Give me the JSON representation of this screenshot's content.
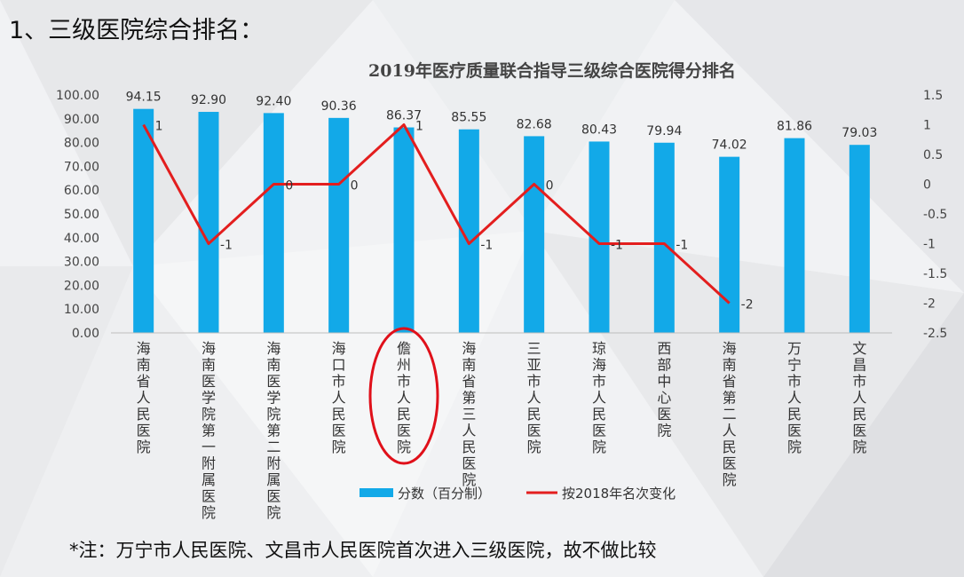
{
  "heading": "1、三级医院综合排名：",
  "footnote": "*注：万宁市人民医院、文昌市人民医院首次进入三级医院，故不做比较",
  "colors": {
    "bar": "#12a9e8",
    "line": "#e31e1e",
    "highlight": "#e0101a"
  },
  "chart_data": {
    "type": "bar",
    "title": "2019年医疗质量联合指导三级综合医院得分排名",
    "categories": [
      "海南省人民医院",
      "海南医学院第一附属医院",
      "海南医学院第二附属医院",
      "海口市人民医院",
      "儋州市人民医院",
      "海南省第三人民医院",
      "三亚市人民医院",
      "琼海市人民医院",
      "西部中心医院",
      "海南省第二人民医院",
      "万宁市人民医院",
      "文昌市人民医院"
    ],
    "series": [
      {
        "name": "分数（百分制）",
        "type": "bar",
        "axis": "left",
        "values": [
          94.15,
          92.9,
          92.4,
          90.36,
          86.37,
          85.55,
          82.68,
          80.43,
          79.94,
          74.02,
          81.86,
          79.03
        ],
        "labels": [
          "94.15",
          "92.90",
          "92.40",
          "90.36",
          "86.37",
          "85.55",
          "82.68",
          "80.43",
          "79.94",
          "74.02",
          "81.86",
          "79.03"
        ]
      },
      {
        "name": "按2018年名次变化",
        "type": "line",
        "axis": "right",
        "values": [
          1,
          -1,
          0,
          0,
          1,
          -1,
          0,
          -1,
          -1,
          -2,
          null,
          null
        ],
        "labels": [
          "1",
          "-1",
          "0",
          "0",
          "1",
          "-1",
          "0",
          "-1",
          "-1",
          "-2",
          "",
          ""
        ]
      }
    ],
    "ylim_left": [
      0,
      100
    ],
    "ylim_right": [
      -2.5,
      1.5
    ],
    "yticks_left": [
      "0.00",
      "10.00",
      "20.00",
      "30.00",
      "40.00",
      "50.00",
      "60.00",
      "70.00",
      "80.00",
      "90.00",
      "100.00"
    ],
    "yticks_right": [
      "-2.5",
      "-2",
      "-1.5",
      "-1",
      "-0.5",
      "0",
      "0.5",
      "1",
      "1.5"
    ],
    "legend_position": "bottom",
    "highlighted_category": "儋州市人民医院"
  }
}
